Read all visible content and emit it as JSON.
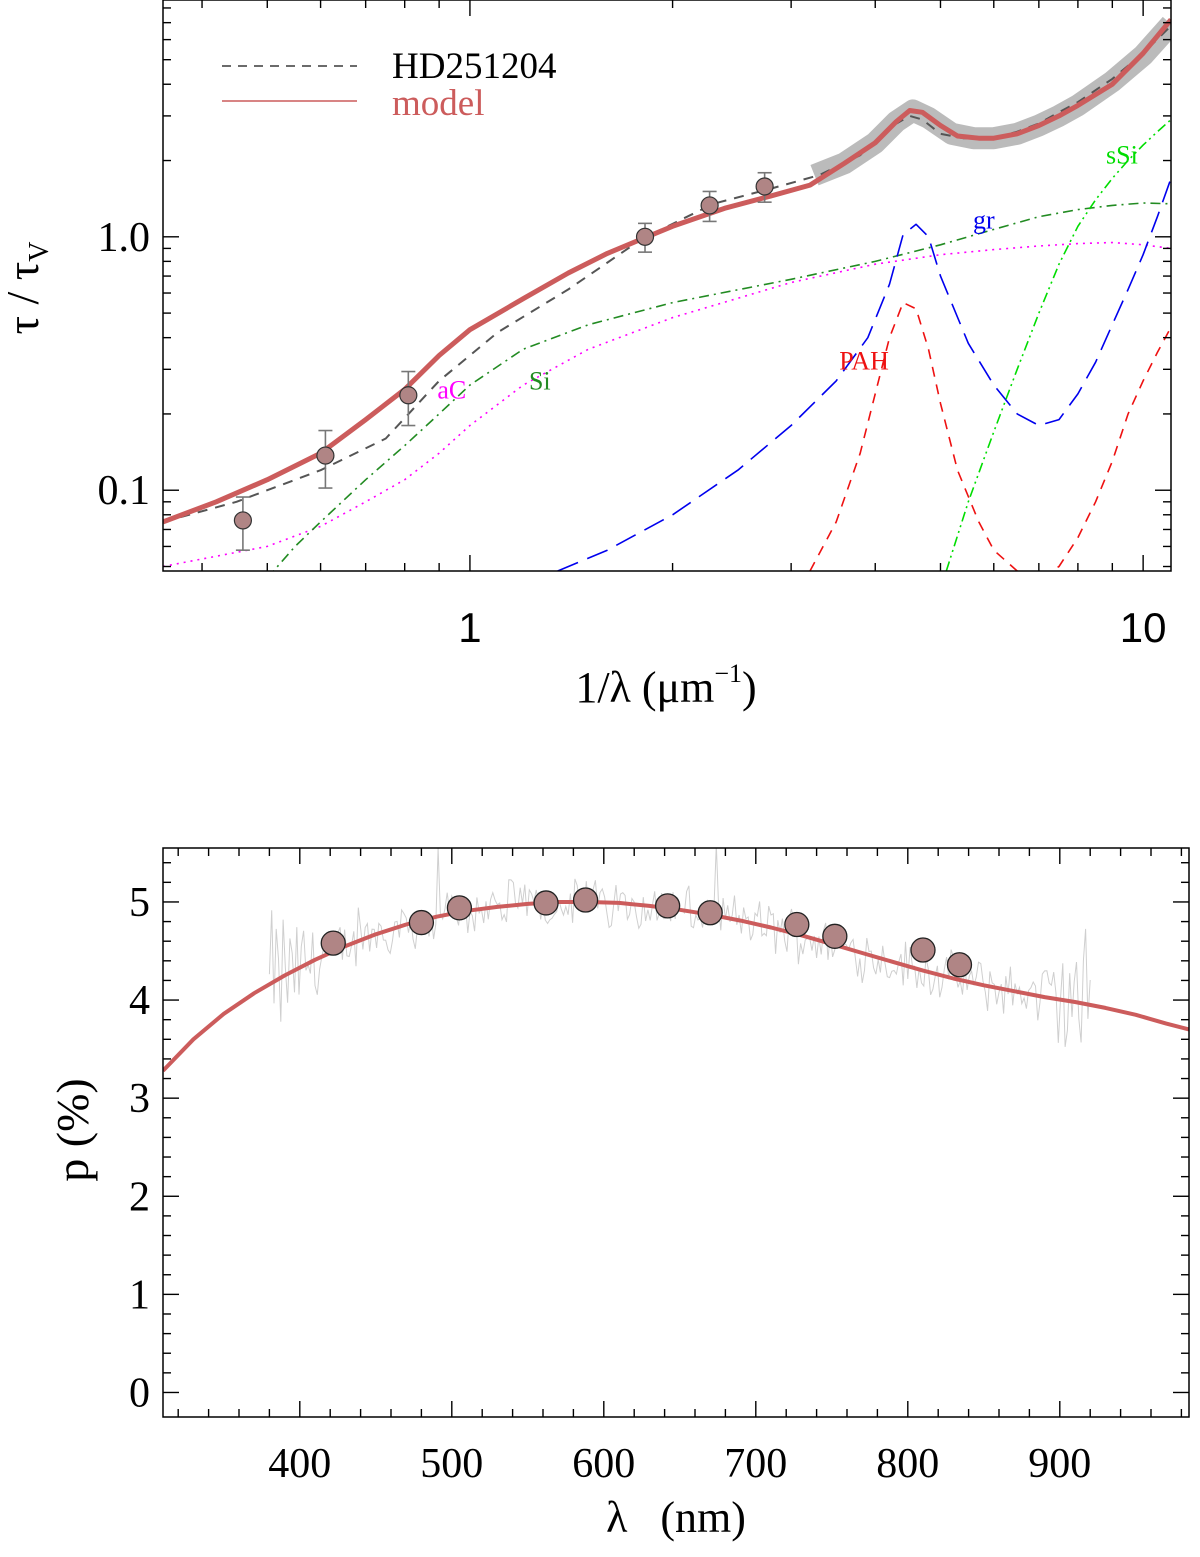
{
  "chart_data": [
    {
      "type": "line",
      "title": "",
      "xlabel": "1/λ (μm",
      "xlabel_sup": "−1",
      "xlabel_close": ")",
      "ylabel": "τ / τ",
      "ylabel_sub": "V",
      "xscale": "log",
      "yscale": "log",
      "xlim": [
        0.35,
        11.0
      ],
      "ylim": [
        0.048,
        8.6
      ],
      "xticks": [
        1,
        10
      ],
      "xtick_labels": [
        "1",
        "10"
      ],
      "yticks": [
        0.1,
        1.0
      ],
      "ytick_labels": [
        "0.1",
        "1.0"
      ],
      "legend": {
        "position": "top-left",
        "entries": [
          {
            "label": "HD251204",
            "style": "dashed",
            "color": "#3a3a3a"
          },
          {
            "label": "model",
            "style": "solid",
            "color": "#cc5c5c"
          }
        ]
      },
      "series": [
        {
          "name": "HD251204 observed",
          "style": "dashed",
          "color": "#555555",
          "x": [
            0.35,
            0.45,
            0.6,
            0.75,
            0.9,
            1.1,
            1.4,
            1.8,
            2.3,
            2.8,
            3.3,
            3.8,
            4.2,
            4.5,
            4.7,
            5.0,
            5.4,
            6.0,
            6.5,
            7.0,
            7.5,
            8.0,
            9.0,
            10.0,
            11.0
          ],
          "y": [
            0.075,
            0.09,
            0.12,
            0.16,
            0.27,
            0.42,
            0.62,
            0.98,
            1.35,
            1.55,
            1.75,
            2.1,
            2.7,
            3.0,
            2.9,
            2.55,
            2.45,
            2.45,
            2.6,
            2.8,
            3.1,
            3.4,
            4.2,
            5.3,
            6.8
          ]
        },
        {
          "name": "model",
          "style": "solid",
          "color": "#cc5c5c",
          "x": [
            0.35,
            0.42,
            0.5,
            0.6,
            0.7,
            0.8,
            0.9,
            1.0,
            1.2,
            1.4,
            1.6,
            1.8,
            2.0,
            2.4,
            2.8,
            3.2,
            3.6,
            4.0,
            4.3,
            4.5,
            4.7,
            5.0,
            5.3,
            5.7,
            6.0,
            6.5,
            7.0,
            7.5,
            8.0,
            9.0,
            10.0,
            11.0
          ],
          "y": [
            0.075,
            0.09,
            0.11,
            0.14,
            0.19,
            0.25,
            0.34,
            0.43,
            0.57,
            0.72,
            0.86,
            0.98,
            1.1,
            1.3,
            1.45,
            1.6,
            1.95,
            2.35,
            2.85,
            3.15,
            3.1,
            2.75,
            2.5,
            2.45,
            2.45,
            2.55,
            2.75,
            3.0,
            3.3,
            4.0,
            5.3,
            7.2
          ]
        },
        {
          "name": "aC",
          "style": "dotted",
          "color": "#ff00ff",
          "x": [
            0.35,
            0.5,
            0.6,
            0.7,
            0.8,
            0.9,
            1.0,
            1.2,
            1.5,
            2.0,
            3.0,
            4.0,
            5.0,
            6.0,
            7.0,
            8.0,
            9.0,
            10.0,
            11.0
          ],
          "y": [
            0.05,
            0.06,
            0.072,
            0.09,
            0.11,
            0.14,
            0.18,
            0.26,
            0.36,
            0.48,
            0.66,
            0.78,
            0.85,
            0.89,
            0.92,
            0.94,
            0.95,
            0.93,
            0.9
          ]
        },
        {
          "name": "Si",
          "style": "dashdot",
          "color": "#228b22",
          "x": [
            0.5,
            0.55,
            0.6,
            0.7,
            0.8,
            0.9,
            1.0,
            1.2,
            1.5,
            2.0,
            3.0,
            4.0,
            5.0,
            6.0,
            7.0,
            8.0,
            9.0,
            10.0,
            11.0
          ],
          "y": [
            0.045,
            0.06,
            0.075,
            0.11,
            0.15,
            0.2,
            0.26,
            0.36,
            0.45,
            0.55,
            0.68,
            0.8,
            0.93,
            1.07,
            1.2,
            1.28,
            1.33,
            1.36,
            1.35
          ]
        },
        {
          "name": "gr",
          "style": "longdash",
          "color": "#0000ee",
          "x": [
            1.35,
            1.6,
            2.0,
            2.5,
            3.0,
            3.5,
            3.9,
            4.2,
            4.4,
            4.6,
            4.8,
            5.0,
            5.5,
            6.0,
            6.5,
            7.0,
            7.5,
            8.0,
            8.5,
            9.0,
            9.5,
            10.0,
            10.5,
            11.0
          ],
          "y": [
            0.048,
            0.058,
            0.08,
            0.12,
            0.18,
            0.27,
            0.4,
            0.65,
            1.02,
            1.12,
            1.0,
            0.7,
            0.38,
            0.26,
            0.2,
            0.18,
            0.19,
            0.24,
            0.32,
            0.45,
            0.62,
            0.85,
            1.2,
            1.7
          ]
        },
        {
          "name": "PAH",
          "style": "dashed",
          "color": "#ee1111",
          "x": [
            3.2,
            3.5,
            3.8,
            4.0,
            4.2,
            4.4,
            4.6,
            4.8,
            5.0,
            5.3,
            5.7,
            6.0,
            6.5,
            7.0,
            7.5,
            8.0,
            8.5,
            9.0,
            9.5,
            10.0,
            10.5,
            11.0
          ],
          "y": [
            0.048,
            0.075,
            0.14,
            0.24,
            0.4,
            0.55,
            0.52,
            0.36,
            0.22,
            0.12,
            0.075,
            0.058,
            0.048,
            0.045,
            0.05,
            0.065,
            0.09,
            0.13,
            0.2,
            0.27,
            0.35,
            0.44
          ]
        },
        {
          "name": "sSi",
          "style": "dashdotdot",
          "color": "#00dd00",
          "x": [
            5.1,
            5.5,
            6.0,
            6.5,
            7.0,
            7.5,
            8.0,
            8.5,
            9.0,
            9.5,
            10.0,
            10.5,
            11.0
          ],
          "y": [
            0.048,
            0.09,
            0.17,
            0.3,
            0.5,
            0.78,
            1.1,
            1.4,
            1.7,
            2.0,
            2.3,
            2.6,
            2.9
          ]
        }
      ],
      "band": {
        "name": "HD251204 uncertainty",
        "color": "#bbbbbb",
        "x": [
          3.25,
          3.6,
          4.0,
          4.3,
          4.55,
          4.8,
          5.2,
          5.6,
          6.0,
          6.5,
          7.0,
          7.5,
          8.0,
          9.0,
          10.0,
          11.0
        ],
        "y": [
          1.75,
          1.95,
          2.35,
          2.85,
          3.15,
          2.95,
          2.55,
          2.45,
          2.45,
          2.55,
          2.75,
          3.0,
          3.3,
          4.1,
          5.2,
          6.9
        ]
      },
      "points": {
        "name": "photometric extinction",
        "color": "#b08585",
        "x": [
          0.46,
          0.61,
          0.81,
          1.82,
          2.27,
          2.74
        ],
        "y": [
          0.076,
          0.137,
          0.237,
          1.0,
          1.33,
          1.58
        ],
        "yerr_low": [
          0.018,
          0.035,
          0.057,
          0.13,
          0.18,
          0.21
        ],
        "yerr_high": [
          0.018,
          0.035,
          0.057,
          0.13,
          0.18,
          0.21
        ]
      },
      "annotations": [
        {
          "text": "aC",
          "color": "#ff00ff",
          "x": 0.94,
          "y": 0.23
        },
        {
          "text": "Si",
          "color": "#228b22",
          "x": 1.27,
          "y": 0.25
        },
        {
          "text": "PAH",
          "color": "#ee1111",
          "x": 3.85,
          "y": 0.3
        },
        {
          "text": "gr",
          "color": "#0000ee",
          "x": 5.8,
          "y": 1.08
        },
        {
          "text": "sSi",
          "color": "#00dd00",
          "x": 9.3,
          "y": 1.95
        }
      ]
    },
    {
      "type": "line",
      "title": "",
      "xlabel": "λ   (nm)",
      "ylabel": "p (%)",
      "xlim": [
        310,
        985
      ],
      "ylim": [
        -0.25,
        5.55
      ],
      "xticks": [
        400,
        500,
        600,
        700,
        800,
        900
      ],
      "xtick_labels": [
        "400",
        "500",
        "600",
        "700",
        "800",
        "900"
      ],
      "yticks": [
        0,
        1,
        2,
        3,
        4,
        5
      ],
      "ytick_labels": [
        "0",
        "1",
        "2",
        "3",
        "4",
        "5"
      ],
      "series": [
        {
          "name": "model",
          "style": "solid",
          "color": "#cc5c5c",
          "x": [
            310,
            330,
            350,
            370,
            390,
            410,
            430,
            450,
            470,
            490,
            510,
            530,
            550,
            570,
            590,
            610,
            630,
            650,
            670,
            690,
            710,
            730,
            750,
            770,
            790,
            810,
            830,
            850,
            870,
            890,
            910,
            930,
            950,
            970,
            985
          ],
          "y": [
            3.28,
            3.6,
            3.86,
            4.07,
            4.25,
            4.41,
            4.55,
            4.67,
            4.77,
            4.85,
            4.91,
            4.95,
            4.98,
            5.0,
            5.0,
            4.99,
            4.96,
            4.92,
            4.87,
            4.81,
            4.74,
            4.66,
            4.57,
            4.48,
            4.39,
            4.3,
            4.22,
            4.15,
            4.09,
            4.03,
            3.98,
            3.92,
            3.85,
            3.76,
            3.7
          ]
        }
      ],
      "spectrum": {
        "name": "observed spectrum",
        "color": "#cfcfcf",
        "x_range": [
          380,
          920
        ],
        "step_nm": 1.5
      },
      "points": {
        "name": "broadband polarization",
        "color": "#b08585",
        "x": [
          422,
          480,
          505,
          562,
          588,
          642,
          670,
          727,
          752,
          810,
          834
        ],
        "y": [
          4.58,
          4.79,
          4.94,
          4.99,
          5.02,
          4.96,
          4.89,
          4.77,
          4.65,
          4.51,
          4.36
        ]
      }
    }
  ]
}
